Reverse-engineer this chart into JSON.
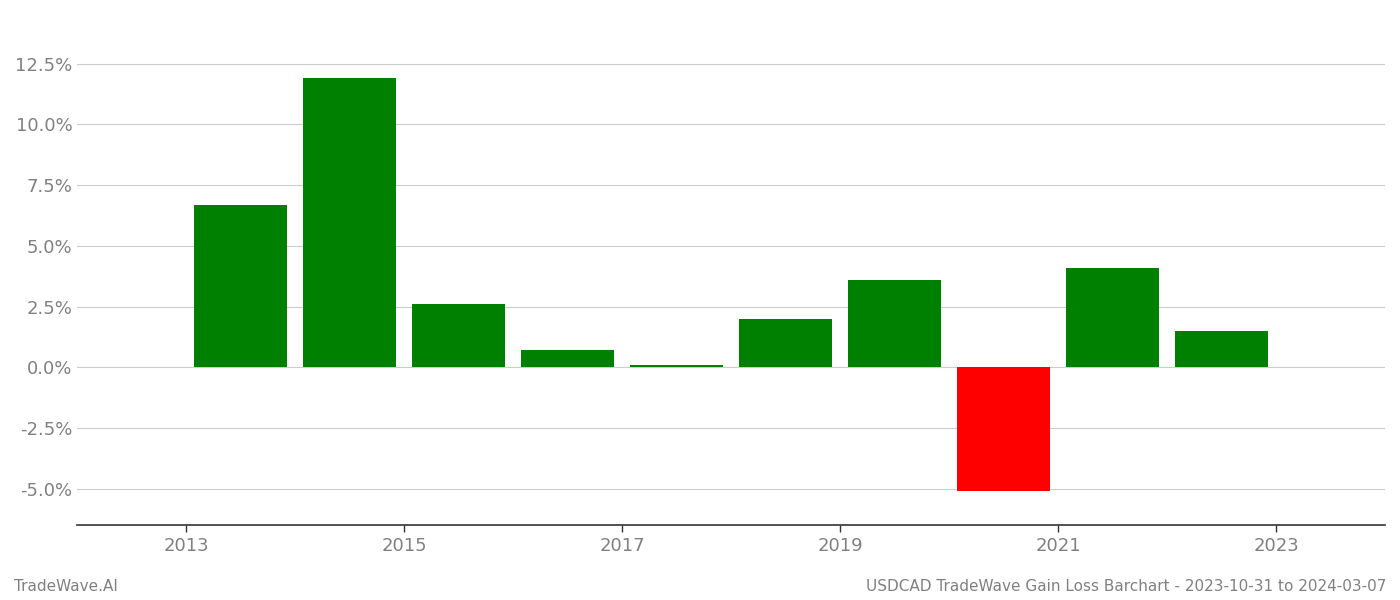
{
  "years": [
    2013.5,
    2014.5,
    2015.5,
    2016.5,
    2017.5,
    2018.5,
    2019.5,
    2020.5,
    2021.5,
    2022.5
  ],
  "values": [
    0.067,
    0.119,
    0.026,
    0.007,
    0.001,
    0.02,
    0.036,
    -0.051,
    0.041,
    0.015
  ],
  "colors": [
    "#008000",
    "#008000",
    "#008000",
    "#008000",
    "#008000",
    "#008000",
    "#008000",
    "#ff0000",
    "#008000",
    "#008000"
  ],
  "bar_width": 0.85,
  "xlim": [
    2012.0,
    2024.0
  ],
  "ylim": [
    -0.065,
    0.145
  ],
  "yticks": [
    -0.05,
    -0.025,
    0.0,
    0.025,
    0.05,
    0.075,
    0.1,
    0.125
  ],
  "xticks": [
    2013,
    2015,
    2017,
    2019,
    2021,
    2023
  ],
  "grid_color": "#cccccc",
  "spine_color": "#333333",
  "background_color": "#ffffff",
  "footer_left": "TradeWave.AI",
  "footer_right": "USDCAD TradeWave Gain Loss Barchart - 2023-10-31 to 2024-03-07",
  "footer_color": "#808080",
  "footer_fontsize": 11,
  "tick_label_fontsize": 13,
  "tick_label_color": "#808080"
}
